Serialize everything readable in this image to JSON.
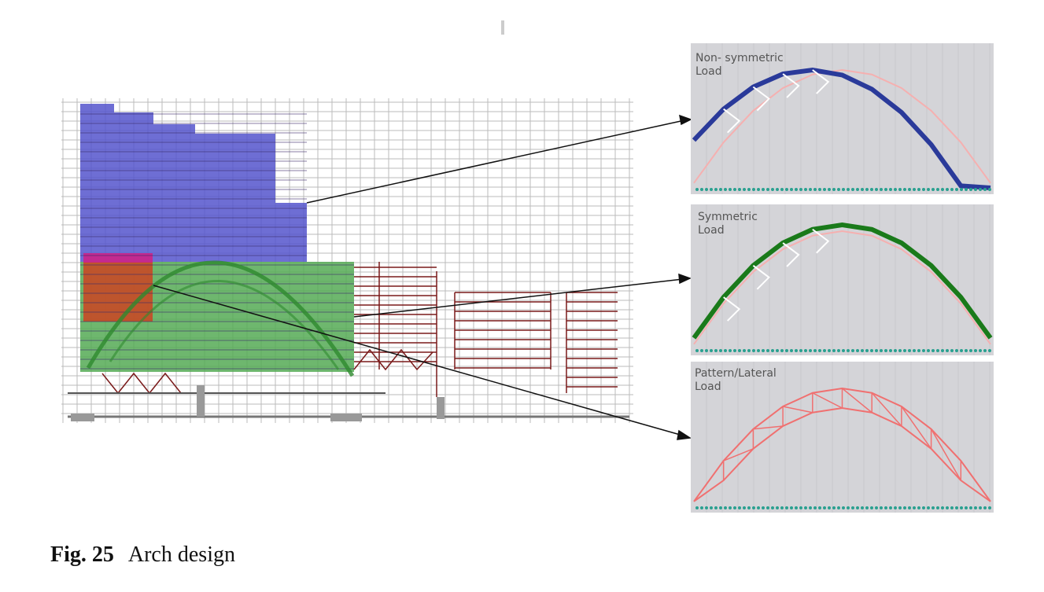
{
  "caption": {
    "number": "Fig. 25",
    "text": "Arch design"
  },
  "panels": [
    {
      "id": "non-symmetric",
      "label_line1": "Non- symmetric",
      "label_line2": "Load",
      "color": "#2a3a9a"
    },
    {
      "id": "symmetric",
      "label_line1": "Symmetric",
      "label_line2": "Load",
      "color": "#1a7a1a"
    },
    {
      "id": "pattern-lateral",
      "label_line1": "Pattern/Lateral",
      "label_line2": "Load",
      "color": "#f07070"
    }
  ],
  "colors": {
    "blue_block": "#5555cc",
    "green_block": "#55aa55",
    "red_block": "#cc4422",
    "magenta_block": "#cc2288",
    "structure_lines": "#7a1a1a",
    "grid": "#bbbbbb",
    "panel_bg": "#d4d4d8",
    "support_dots": "#2aa090"
  }
}
